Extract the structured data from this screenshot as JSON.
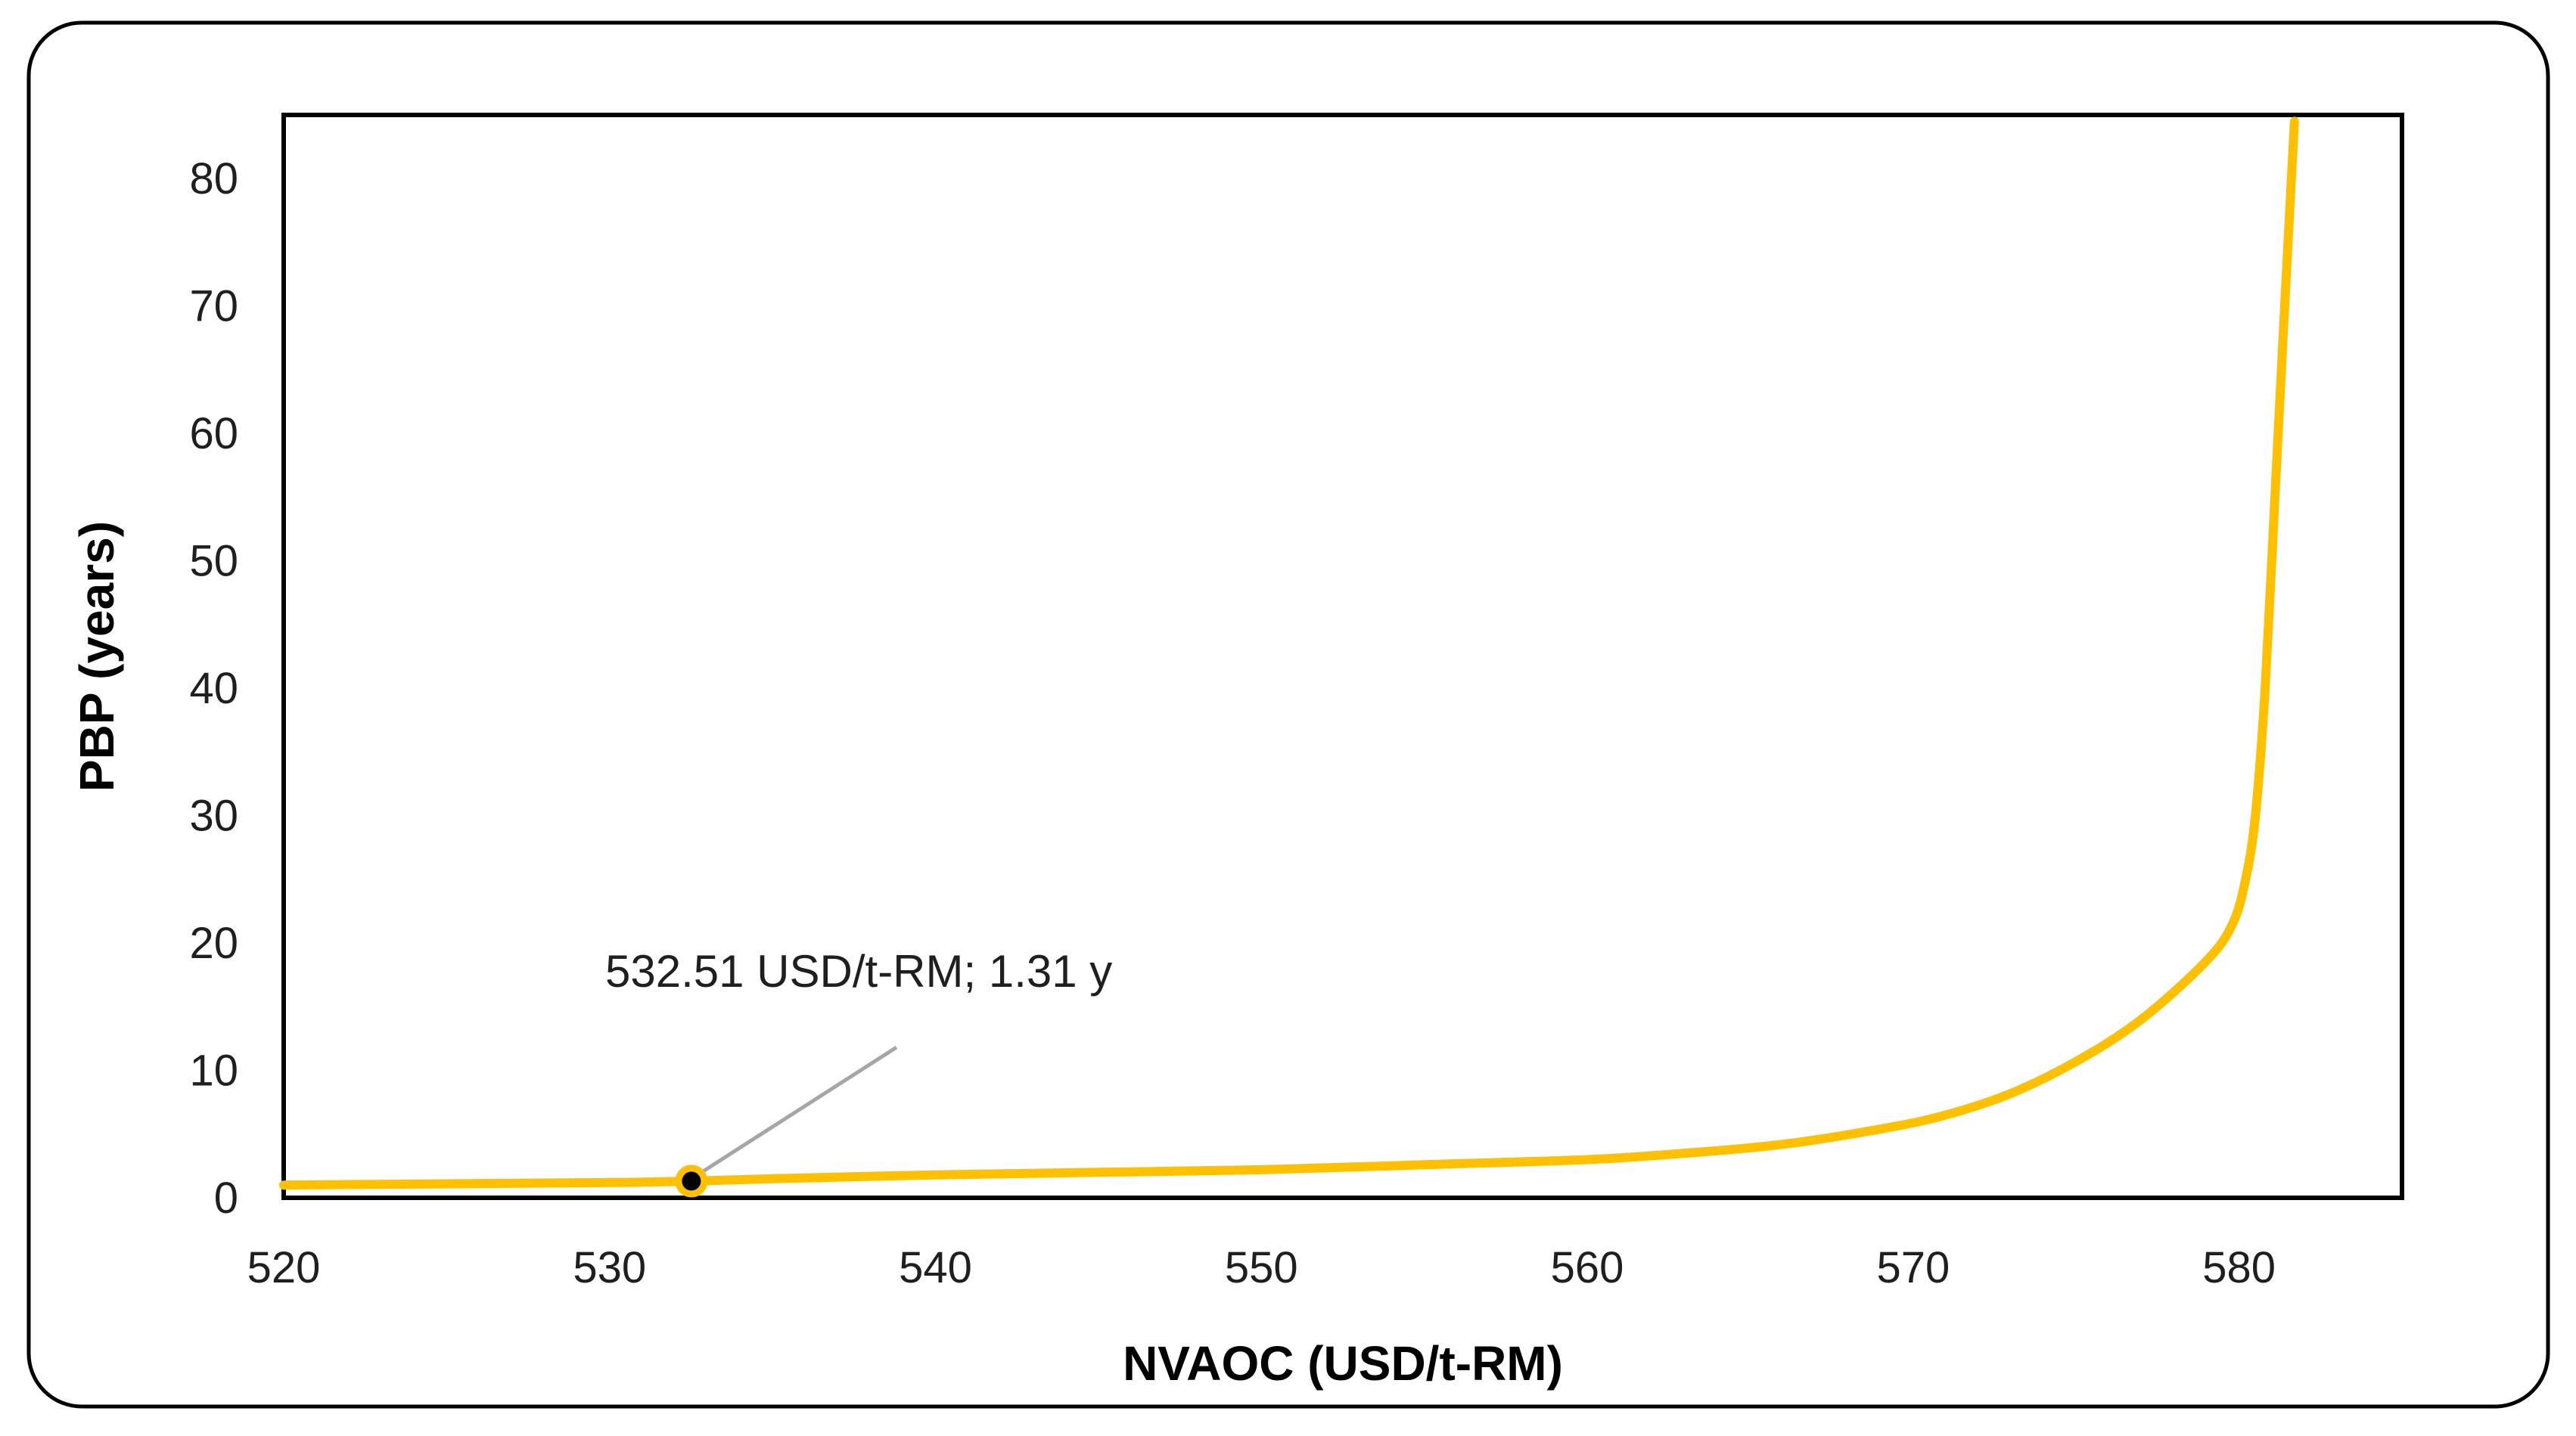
{
  "chart_data": {
    "type": "line",
    "title": "",
    "xlabel": "NVAOC (USD/t-RM)",
    "ylabel": "PBP (years)",
    "xlim": [
      520,
      585
    ],
    "ylim": [
      0,
      85
    ],
    "x_ticks": [
      520,
      530,
      540,
      550,
      560,
      570,
      580
    ],
    "y_ticks": [
      0,
      10,
      20,
      30,
      40,
      50,
      60,
      70,
      80
    ],
    "grid": false,
    "legend": "none",
    "series": [
      {
        "color": "#FFC000",
        "x": [
          520,
          525,
          530,
          532.51,
          535,
          540,
          545,
          550,
          555,
          560,
          563,
          566,
          569,
          571,
          573,
          575,
          577,
          579,
          579.8,
          580.2,
          580.5,
          580.8,
          581.1,
          581.4,
          581.7
        ],
        "y": [
          1.0,
          1.1,
          1.2,
          1.31,
          1.5,
          1.8,
          2.0,
          2.2,
          2.6,
          3.0,
          3.5,
          4.2,
          5.4,
          6.5,
          8.2,
          10.7,
          14.0,
          18.6,
          21.5,
          25.0,
          30.0,
          40.0,
          55.0,
          70.0,
          84.5
        ]
      }
    ],
    "highlight_point": {
      "x": 532.51,
      "y": 1.31,
      "label": "532.51 USD/t-RM; 1.31 y",
      "color": "#000000",
      "outline_color": "#FFC000"
    }
  }
}
